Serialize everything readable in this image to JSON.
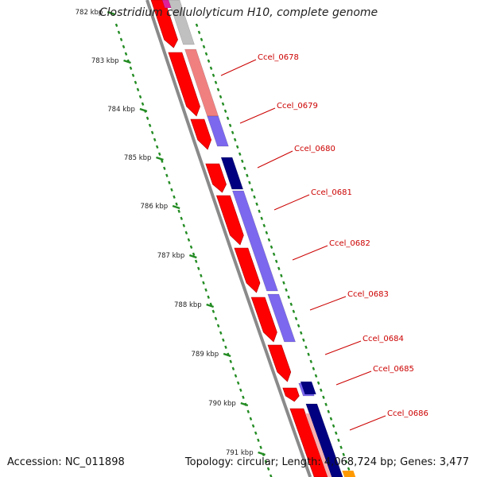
{
  "title": "Clostridium cellulolyticum H10, complete genome",
  "footer": {
    "accession": "Accession: NC_011898",
    "stats": "Topology: circular; Length: 4,068,724 bp; Genes: 3,477"
  },
  "colors": {
    "backbone": "#8a8a8a",
    "cds_forward": "#ff0000",
    "cds_reverse": "#ff2020",
    "cog_light_red": "#f08080",
    "cog_purple": "#7b68ee",
    "cog_navy": "#000080",
    "cog_gray": "#c0c0c0",
    "cog_magenta": "#e0209a",
    "cog_orange": "#ff9900",
    "tick_green": "#228b22",
    "gene_label": "#cc0000",
    "scale_label": "#222222"
  },
  "scale_ticks": [
    "782 kbp",
    "783 kbp",
    "784 kbp",
    "785 kbp",
    "786 kbp",
    "787 kbp",
    "788 kbp",
    "789 kbp",
    "790 kbp",
    "791 kbp"
  ],
  "gene_labels": [
    "Ccel_0678",
    "Ccel_0679",
    "Ccel_0680",
    "Ccel_0681",
    "Ccel_0682",
    "Ccel_0683",
    "Ccel_0684",
    "Ccel_0685",
    "Ccel_0686"
  ]
}
